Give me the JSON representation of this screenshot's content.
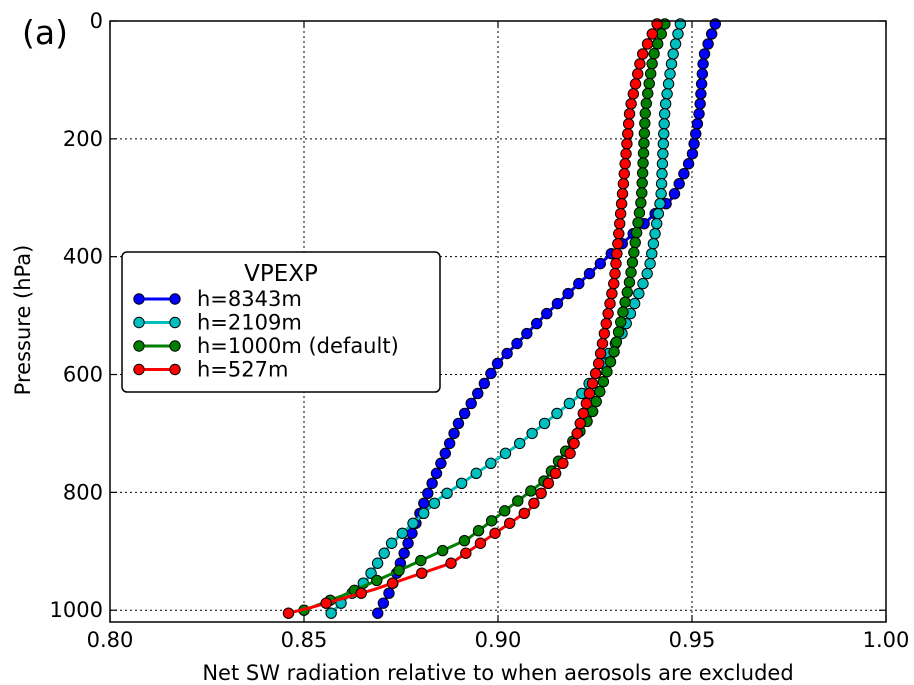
{
  "panel_label": "(a)",
  "chart_data": {
    "type": "line",
    "title": "",
    "xlabel": "Net SW radiation relative to when aerosols are excluded",
    "ylabel": "Pressure (hPa)",
    "xlim": [
      0.8,
      1.0
    ],
    "ylim": [
      1020,
      0
    ],
    "y_inverted": true,
    "grid": true,
    "x_ticks": [
      0.8,
      0.85,
      0.9,
      0.95,
      1.0
    ],
    "x_tick_labels": [
      "0.80",
      "0.85",
      "0.90",
      "0.95",
      "1.00"
    ],
    "y_ticks": [
      0,
      200,
      400,
      600,
      800,
      1000
    ],
    "y_tick_labels": [
      "0",
      "200",
      "400",
      "600",
      "800",
      "1000"
    ],
    "legend": {
      "title": "VPEXP",
      "placement": "center-left"
    },
    "marker": "circle",
    "series": [
      {
        "name": "h=8343m",
        "color": "#0000ff",
        "points": [
          [
            0.956,
            5
          ],
          [
            0.953,
            60
          ],
          [
            0.952,
            150
          ],
          [
            0.95,
            230
          ],
          [
            0.945,
            300
          ],
          [
            0.935,
            360
          ],
          [
            0.925,
            420
          ],
          [
            0.912,
            500
          ],
          [
            0.9,
            580
          ],
          [
            0.89,
            680
          ],
          [
            0.882,
            800
          ],
          [
            0.876,
            900
          ],
          [
            0.872,
            970
          ],
          [
            0.869,
            1005
          ]
        ]
      },
      {
        "name": "h=2109m",
        "color": "#00bfbf",
        "points": [
          [
            0.947,
            5
          ],
          [
            0.945,
            60
          ],
          [
            0.943,
            150
          ],
          [
            0.942,
            300
          ],
          [
            0.939,
            420
          ],
          [
            0.932,
            530
          ],
          [
            0.922,
            630
          ],
          [
            0.905,
            720
          ],
          [
            0.885,
            810
          ],
          [
            0.872,
            890
          ],
          [
            0.866,
            950
          ],
          [
            0.86,
            985
          ],
          [
            0.857,
            1005
          ]
        ]
      },
      {
        "name": "h=1000m (default)",
        "color": "#008000",
        "points": [
          [
            0.943,
            5
          ],
          [
            0.94,
            60
          ],
          [
            0.938,
            150
          ],
          [
            0.937,
            300
          ],
          [
            0.934,
            440
          ],
          [
            0.93,
            560
          ],
          [
            0.924,
            670
          ],
          [
            0.912,
            780
          ],
          [
            0.892,
            880
          ],
          [
            0.872,
            940
          ],
          [
            0.86,
            975
          ],
          [
            0.85,
            1000
          ]
        ]
      },
      {
        "name": "h=527m",
        "color": "#ff0000",
        "points": [
          [
            0.941,
            5
          ],
          [
            0.937,
            60
          ],
          [
            0.934,
            150
          ],
          [
            0.932,
            300
          ],
          [
            0.93,
            440
          ],
          [
            0.926,
            580
          ],
          [
            0.919,
            730
          ],
          [
            0.908,
            830
          ],
          [
            0.888,
            920
          ],
          [
            0.868,
            965
          ],
          [
            0.852,
            995
          ],
          [
            0.846,
            1005
          ]
        ]
      }
    ]
  }
}
